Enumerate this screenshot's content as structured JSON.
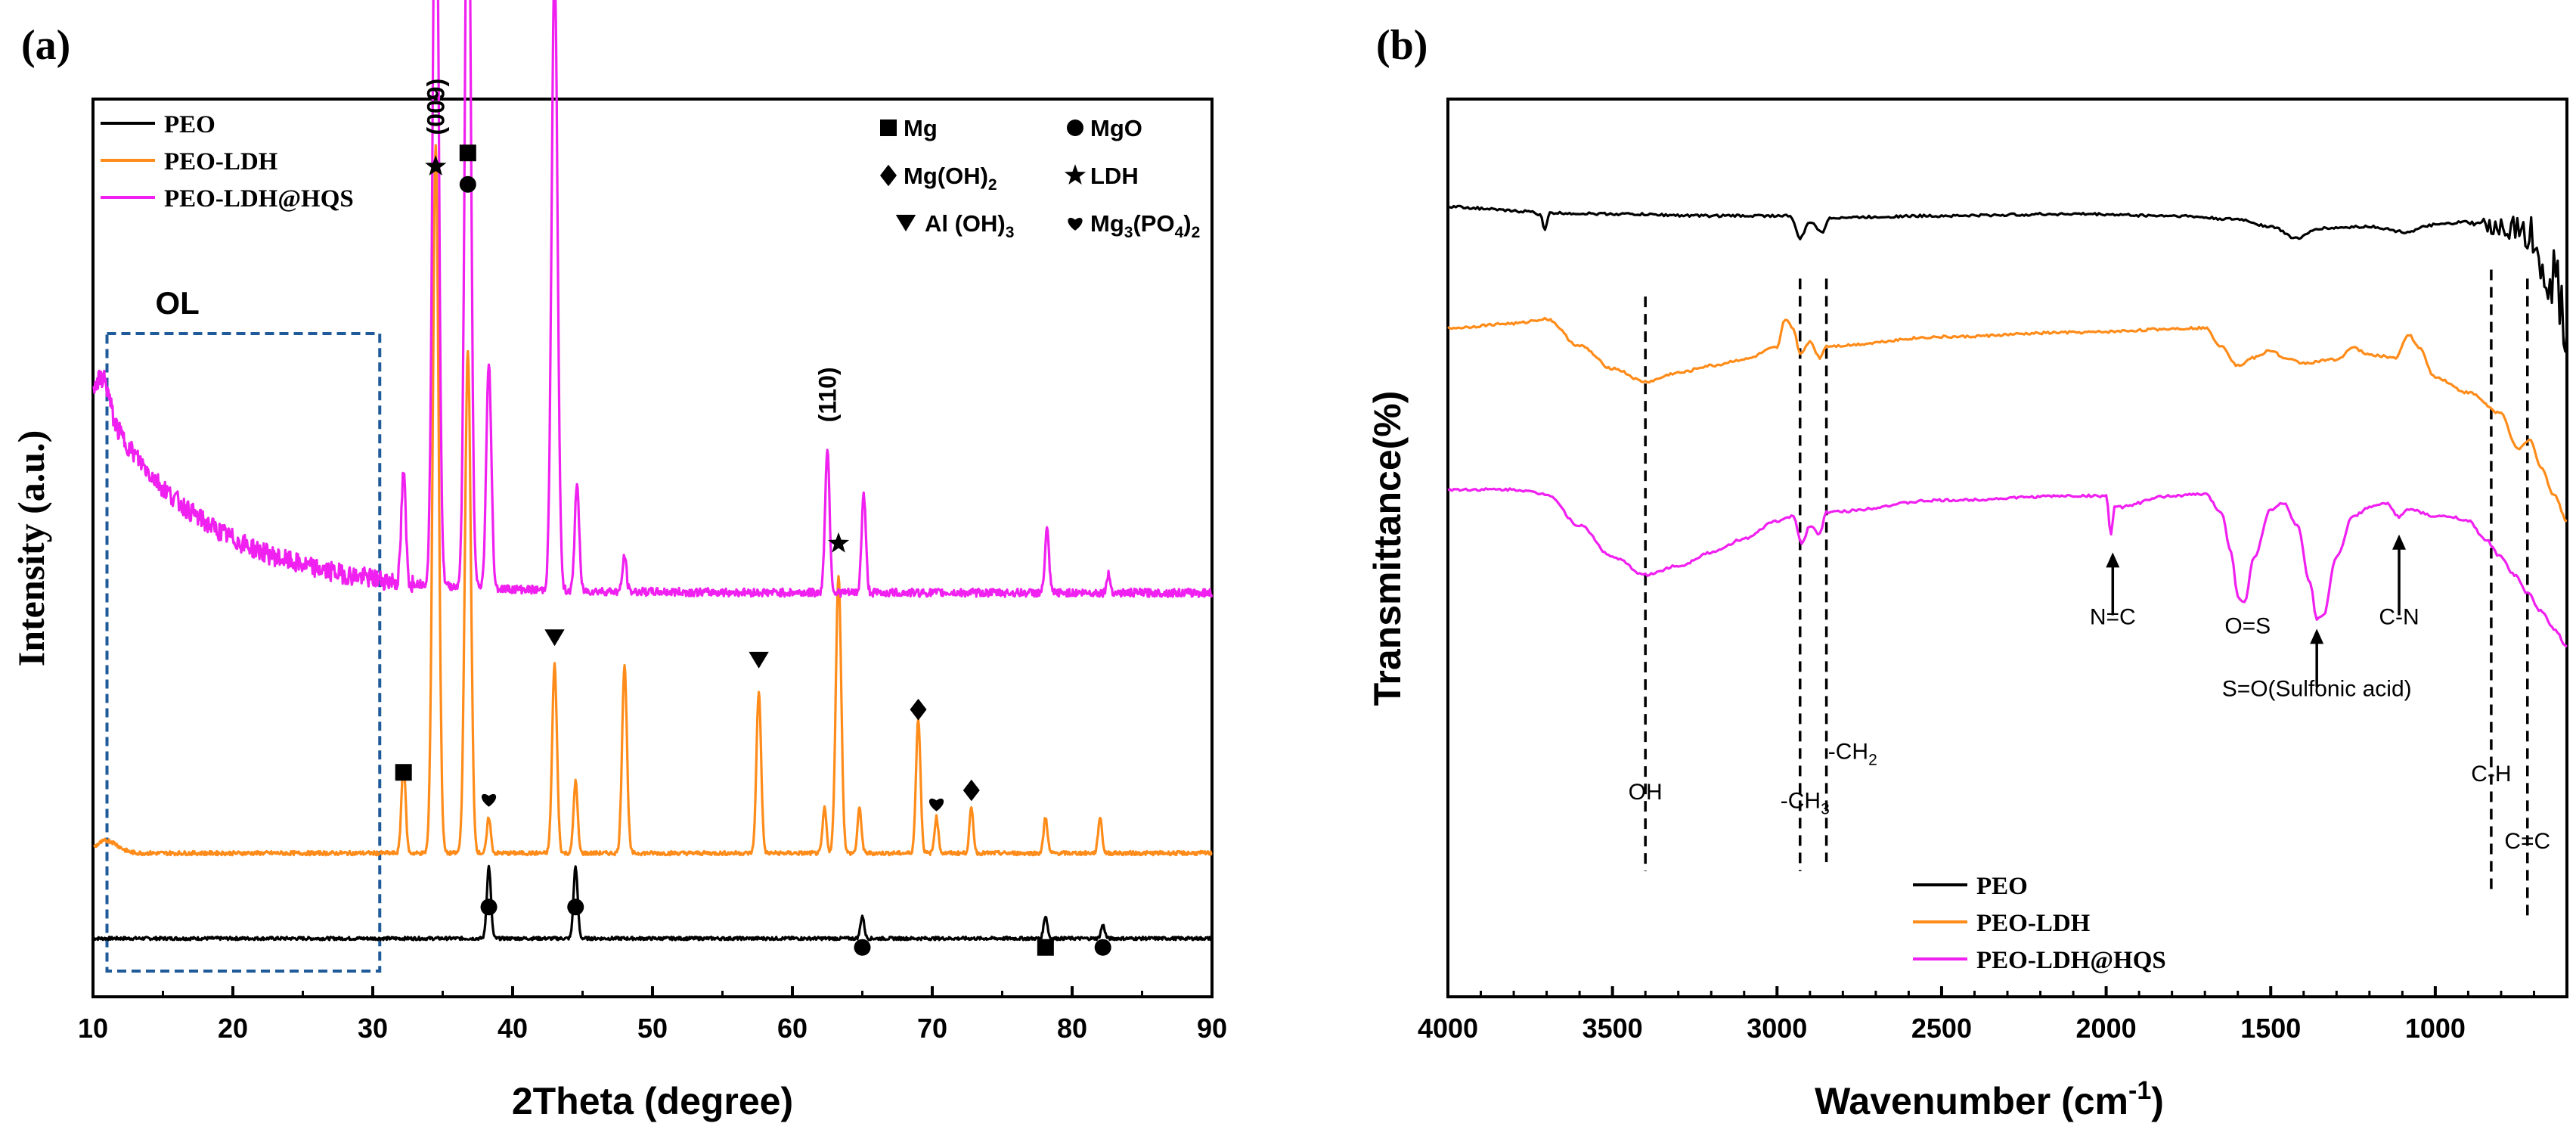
{
  "panels": {
    "a_label": "(a)",
    "b_label": "(b)"
  },
  "colors": {
    "PEO": "#000000",
    "PEO-LDH": "#FF8C1A",
    "PEO-LDH@HQS": "#F020F0",
    "OL_box": "#1F5A9A"
  },
  "chart_data": [
    {
      "type": "line",
      "panel": "(a)",
      "xlabel": "2Theta (degree)",
      "ylabel": "Intensity (a.u.)",
      "xlim": [
        10,
        90
      ],
      "ylim": [
        0,
        100
      ],
      "x_ticks": [
        "10",
        "20",
        "30",
        "40",
        "50",
        "60",
        "70",
        "80",
        "90"
      ],
      "legend": [
        "PEO",
        "PEO-LDH",
        "PEO-LDH@HQS"
      ],
      "legend_position": "top-left",
      "phase_legend": [
        {
          "symbol": "square",
          "label": "Mg"
        },
        {
          "symbol": "circle",
          "label": "MgO"
        },
        {
          "symbol": "diamond",
          "label": "Mg(OH)",
          "sub": "2"
        },
        {
          "symbol": "star",
          "label": "LDH"
        },
        {
          "symbol": "triangle-down",
          "label": "Al (OH)",
          "sub": "3"
        },
        {
          "symbol": "heart",
          "label": "Mg",
          "sub": "3",
          "label2": "(PO",
          "sub2": "4",
          "label3": ")",
          "sub3": "2"
        }
      ],
      "box_label": "OL",
      "box_range": [
        11,
        30.5
      ],
      "series": [
        {
          "name": "PEO",
          "baseline": 6.5,
          "peaks": [
            [
              38.3,
              8
            ],
            [
              44.5,
              8
            ],
            [
              65.0,
              2.5
            ],
            [
              78.1,
              2.5
            ],
            [
              82.2,
              1.5
            ]
          ],
          "markers": [
            {
              "x": 38.3,
              "y": 10,
              "symbol": "circle"
            },
            {
              "x": 44.5,
              "y": 10,
              "symbol": "circle"
            },
            {
              "x": 65.0,
              "y": 5.5,
              "symbol": "circle"
            },
            {
              "x": 78.1,
              "y": 5.5,
              "symbol": "square"
            },
            {
              "x": 82.2,
              "y": 5.5,
              "symbol": "circle"
            }
          ]
        },
        {
          "name": "PEO-LDH",
          "baseline": 16,
          "peaks": [
            [
              32.2,
              10
            ],
            [
              34.5,
              79
            ],
            [
              36.8,
              56
            ],
            [
              38.3,
              4
            ],
            [
              43.0,
              21
            ],
            [
              44.5,
              8
            ],
            [
              48.0,
              21
            ],
            [
              57.6,
              18
            ],
            [
              62.3,
              5
            ],
            [
              63.3,
              31
            ],
            [
              64.8,
              5
            ],
            [
              69.0,
              15
            ],
            [
              70.3,
              4
            ],
            [
              72.8,
              5
            ],
            [
              78.1,
              4
            ],
            [
              82.0,
              4
            ]
          ],
          "markers": [
            {
              "x": 32.2,
              "y": 25,
              "symbol": "square"
            },
            {
              "x": 38.3,
              "y": 22,
              "symbol": "heart"
            },
            {
              "x": 43.0,
              "y": 40,
              "symbol": "triangle-down"
            },
            {
              "x": 57.6,
              "y": 37.5,
              "symbol": "triangle-down"
            },
            {
              "x": 63.3,
              "y": 50.5,
              "symbol": "star"
            },
            {
              "x": 69.0,
              "y": 32,
              "symbol": "diamond"
            },
            {
              "x": 70.3,
              "y": 21.5,
              "symbol": "heart"
            },
            {
              "x": 72.8,
              "y": 23,
              "symbol": "diamond"
            }
          ]
        },
        {
          "name": "PEO-LDH@HQS",
          "baseline": 45,
          "peaks": [
            [
              32.2,
              12
            ],
            [
              34.5,
              91
            ],
            [
              36.8,
              91
            ],
            [
              38.3,
              25
            ],
            [
              43.0,
              70
            ],
            [
              44.6,
              12
            ],
            [
              48.0,
              4
            ],
            [
              62.5,
              16
            ],
            [
              65.1,
              11
            ],
            [
              78.2,
              7
            ],
            [
              82.6,
              2
            ]
          ],
          "markers": [
            {
              "x": 34.5,
              "y": 92.5,
              "symbol": "star"
            },
            {
              "x": 36.8,
              "y": 90.5,
              "symbol": "circle"
            },
            {
              "x": 36.8,
              "y": 94,
              "symbol": "square"
            }
          ]
        }
      ],
      "annotations": [
        {
          "x": 34.5,
          "y": 96,
          "text": "(009)",
          "rotate": true
        },
        {
          "x": 62.5,
          "y": 64,
          "text": "(110)",
          "rotate": true
        }
      ]
    },
    {
      "type": "line",
      "panel": "(b)",
      "xlabel": "Wavenumber (cm",
      "xlabel_sup": "-1",
      "xlabel_end": ")",
      "ylabel": "Transmittance(%)",
      "xlim": [
        4000,
        600
      ],
      "ylim": [
        0,
        100
      ],
      "x_ticks": [
        "4000",
        "3500",
        "3000",
        "2500",
        "2000",
        "1500",
        "1000"
      ],
      "legend": [
        "PEO",
        "PEO-LDH",
        "PEO-LDH@HQS"
      ],
      "legend_position": "bottom-right",
      "series": [
        {
          "name": "PEO",
          "points": [
            [
              4000,
              88
            ],
            [
              3760,
              87.5
            ],
            [
              3720,
              87.2
            ],
            [
              3705,
              85.5
            ],
            [
              3690,
              87.3
            ],
            [
              3500,
              87.2
            ],
            [
              3200,
              87
            ],
            [
              2960,
              87
            ],
            [
              2930,
              84.5
            ],
            [
              2900,
              86.3
            ],
            [
              2860,
              85.2
            ],
            [
              2840,
              86.8
            ],
            [
              2500,
              87
            ],
            [
              2100,
              87.2
            ],
            [
              1800,
              87
            ],
            [
              1600,
              86.6
            ],
            [
              1500,
              85.8
            ],
            [
              1420,
              84.5
            ],
            [
              1350,
              85.6
            ],
            [
              1200,
              85.8
            ],
            [
              1090,
              85.2
            ],
            [
              1000,
              86
            ],
            [
              900,
              86.3
            ],
            [
              800,
              85.8
            ],
            [
              720,
              85
            ],
            [
              680,
              82
            ],
            [
              640,
              80
            ],
            [
              610,
              76
            ],
            [
              600,
              74
            ]
          ],
          "noise_from": 900
        },
        {
          "name": "PEO-LDH",
          "points": [
            [
              4000,
              74.5
            ],
            [
              3800,
              75
            ],
            [
              3700,
              75.5
            ],
            [
              3600,
              72.5
            ],
            [
              3500,
              70
            ],
            [
              3400,
              68.5
            ],
            [
              3300,
              69.5
            ],
            [
              3200,
              70.3
            ],
            [
              3100,
              71
            ],
            [
              3000,
              72.3
            ],
            [
              2975,
              75.5
            ],
            [
              2950,
              74.5
            ],
            [
              2930,
              71.5
            ],
            [
              2900,
              73
            ],
            [
              2870,
              71.2
            ],
            [
              2850,
              72.5
            ],
            [
              2500,
              73.5
            ],
            [
              2100,
              74
            ],
            [
              1700,
              74.5
            ],
            [
              1650,
              72.5
            ],
            [
              1600,
              70.3
            ],
            [
              1550,
              71.2
            ],
            [
              1500,
              72
            ],
            [
              1450,
              71
            ],
            [
              1400,
              70.6
            ],
            [
              1300,
              71
            ],
            [
              1250,
              72.3
            ],
            [
              1200,
              71.5
            ],
            [
              1120,
              71.2
            ],
            [
              1080,
              73.8
            ],
            [
              1050,
              72.3
            ],
            [
              1000,
              69
            ],
            [
              900,
              67.3
            ],
            [
              800,
              65
            ],
            [
              750,
              61
            ],
            [
              710,
              62
            ],
            [
              680,
              59
            ],
            [
              640,
              56
            ],
            [
              600,
              53
            ]
          ]
        },
        {
          "name": "PEO-LDH@HQS",
          "points": [
            [
              4000,
              56.5
            ],
            [
              3800,
              56.5
            ],
            [
              3700,
              56
            ],
            [
              3600,
              52.5
            ],
            [
              3500,
              49
            ],
            [
              3400,
              47
            ],
            [
              3300,
              48
            ],
            [
              3200,
              49.5
            ],
            [
              3100,
              51
            ],
            [
              3000,
              53
            ],
            [
              2950,
              53.5
            ],
            [
              2925,
              50.5
            ],
            [
              2900,
              52.5
            ],
            [
              2870,
              51.5
            ],
            [
              2850,
              54
            ],
            [
              2500,
              55.3
            ],
            [
              2100,
              55.8
            ],
            [
              2000,
              55.8
            ],
            [
              1985,
              51.5
            ],
            [
              1975,
              54.5
            ],
            [
              1800,
              55.8
            ],
            [
              1700,
              56
            ],
            [
              1650,
              54
            ],
            [
              1620,
              49.5
            ],
            [
              1600,
              44.5
            ],
            [
              1580,
              44
            ],
            [
              1550,
              49
            ],
            [
              1500,
              54.3
            ],
            [
              1460,
              55
            ],
            [
              1420,
              52.5
            ],
            [
              1380,
              46
            ],
            [
              1360,
              42
            ],
            [
              1340,
              42.5
            ],
            [
              1300,
              49
            ],
            [
              1250,
              53.5
            ],
            [
              1200,
              54.5
            ],
            [
              1150,
              55
            ],
            [
              1110,
              53.5
            ],
            [
              1080,
              54.3
            ],
            [
              1000,
              53.5
            ],
            [
              950,
              53.5
            ],
            [
              900,
              53
            ],
            [
              850,
              51
            ],
            [
              800,
              49
            ],
            [
              760,
              47
            ],
            [
              720,
              45
            ],
            [
              680,
              43
            ],
            [
              640,
              41
            ],
            [
              600,
              39
            ]
          ]
        }
      ],
      "vlines": [
        3400,
        2930,
        2850,
        830,
        720
      ],
      "annotations": [
        {
          "x": 3400,
          "y": 22,
          "text": "OH"
        },
        {
          "x": 2915,
          "y": 21,
          "text": "-CH",
          "sub": "3"
        },
        {
          "x": 2845,
          "y": 26.5,
          "text": "-CH",
          "sub": "2"
        },
        {
          "x": 1980,
          "y": 41.5,
          "text": "N=C",
          "arrow": true
        },
        {
          "x": 1570,
          "y": 40.5,
          "text": "O=S"
        },
        {
          "x": 1360,
          "y": 33.5,
          "text": "S=O(Sulfonic acid)",
          "arrow": true
        },
        {
          "x": 1110,
          "y": 41.5,
          "text": "C-N",
          "arrow": true
        },
        {
          "x": 830,
          "y": 24,
          "text": "C-H"
        },
        {
          "x": 720,
          "y": 16.5,
          "text": "C=C"
        }
      ]
    }
  ]
}
